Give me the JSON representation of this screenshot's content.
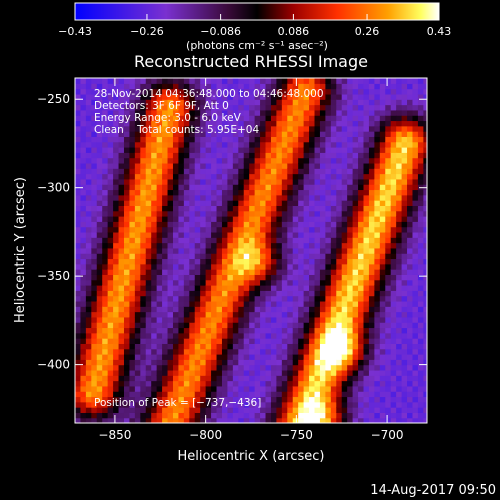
{
  "chart_data": {
    "type": "heatmap",
    "title": "Reconstructed RHESSI Image",
    "xlabel": "Heliocentric X (arcsec)",
    "ylabel": "Heliocentric Y (arcsec)",
    "xlim": [
      -872,
      -678
    ],
    "ylim": [
      -433,
      -238
    ],
    "xticks": [
      -850,
      -800,
      -750,
      -700
    ],
    "xtick_labels": [
      "−850",
      "−800",
      "−750",
      "−700"
    ],
    "yticks": [
      -250,
      -300,
      -350,
      -400
    ],
    "ytick_labels": [
      "−250",
      "−300",
      "−350",
      "−400"
    ],
    "colorbar": {
      "range": [
        -0.43,
        0.43
      ],
      "ticks": [
        -0.43,
        -0.26,
        -0.086,
        0.086,
        0.26,
        0.43
      ],
      "tick_labels": [
        "−0.43",
        "−0.26",
        "−0.086",
        "0.086",
        "0.26",
        "0.43"
      ],
      "unit_label": "(photons cm⁻² s⁻¹ asec⁻²)",
      "colors": [
        "#0000ff",
        "#8a2be2",
        "#6b1c6b",
        "#000000",
        "#9c0000",
        "#ff3000",
        "#ffa000",
        "#ffff80",
        "#ffffff"
      ]
    },
    "annotations": [
      "28-Nov-2014 04:36:48.000 to 04:46:48.000",
      "Detectors: 3F 6F 9F, Att 0",
      "Energy Range: 3.0 - 6.0 keV",
      "Clean    Total counts: 5.95E+04"
    ],
    "peak_label": "Position of Peak = [−737,−436]",
    "peak": [
      -737,
      -436
    ],
    "grid": false,
    "bright_ridges": [
      {
        "from": [
          -820,
          -255
        ],
        "to": [
          -862,
          -415
        ],
        "peak": 0.3
      },
      {
        "from": [
          -745,
          -245
        ],
        "to": [
          -820,
          -435
        ],
        "peak": 0.28
      },
      {
        "from": [
          -690,
          -275
        ],
        "to": [
          -748,
          -435
        ],
        "peak": 0.36
      }
    ],
    "hot_spots": [
      {
        "x": -769,
        "y": -343,
        "value": 0.43
      },
      {
        "x": -723,
        "y": -392,
        "value": 0.4
      },
      {
        "x": -733,
        "y": -432,
        "value": 0.42
      }
    ]
  },
  "footer": {
    "date": "14-Aug-2017 09:50"
  }
}
